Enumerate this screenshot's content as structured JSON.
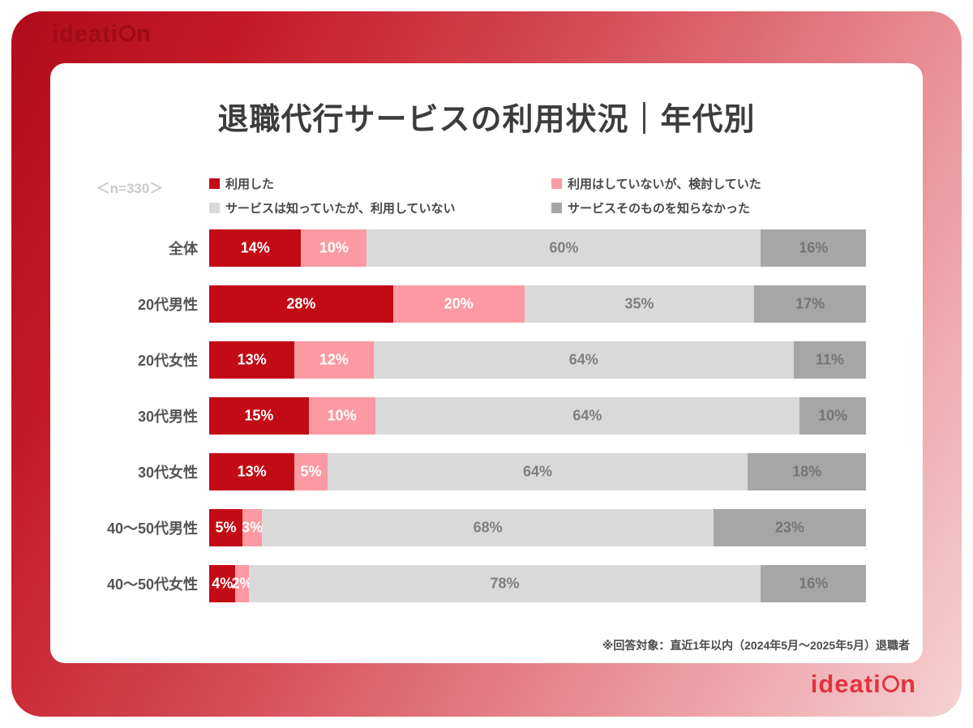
{
  "brand": {
    "logo_text": "ideation",
    "logo_top_color": "#9e0b16",
    "logo_bottom_color": "#e23340"
  },
  "header": {
    "title": "退職代行サービスの利用状況｜年代別",
    "sample_label": "＜n=330＞"
  },
  "legend": [
    {
      "label": "利用した",
      "color": "#c20b14"
    },
    {
      "label": "利用はしていないが、検討していた",
      "color": "#fb9aa2"
    },
    {
      "label": "サービスは知っていたが、利用していない",
      "color": "#d9d9d9"
    },
    {
      "label": "サービスそのものを知らなかった",
      "color": "#a6a6a6"
    }
  ],
  "chart_data": {
    "type": "bar",
    "orientation": "horizontal",
    "stacked": true,
    "title": "退職代行サービスの利用状況｜年代別",
    "value_suffix": "%",
    "xlim": [
      0,
      100
    ],
    "legend_position": "top",
    "categories": [
      "全体",
      "20代男性",
      "20代女性",
      "30代男性",
      "30代女性",
      "40〜50代男性",
      "40〜50代女性"
    ],
    "series": [
      {
        "name": "利用した",
        "color": "#c20b14",
        "text_color": "#ffffff",
        "values": [
          14,
          28,
          13,
          15,
          13,
          5,
          4
        ]
      },
      {
        "name": "利用はしていないが、検討していた",
        "color": "#fb9aa2",
        "text_color": "#ffffff",
        "values": [
          10,
          20,
          12,
          10,
          5,
          3,
          2
        ]
      },
      {
        "name": "サービスは知っていたが、利用していない",
        "color": "#d9d9d9",
        "text_color": "#7f7f7f",
        "values": [
          60,
          35,
          64,
          64,
          64,
          68,
          78
        ]
      },
      {
        "name": "サービスそのものを知らなかった",
        "color": "#a6a6a6",
        "text_color": "#757575",
        "values": [
          16,
          17,
          11,
          10,
          18,
          23,
          16
        ]
      }
    ]
  },
  "footer": {
    "note": "※回答対象：直近1年以内（2024年5月〜2025年5月）退職者"
  }
}
